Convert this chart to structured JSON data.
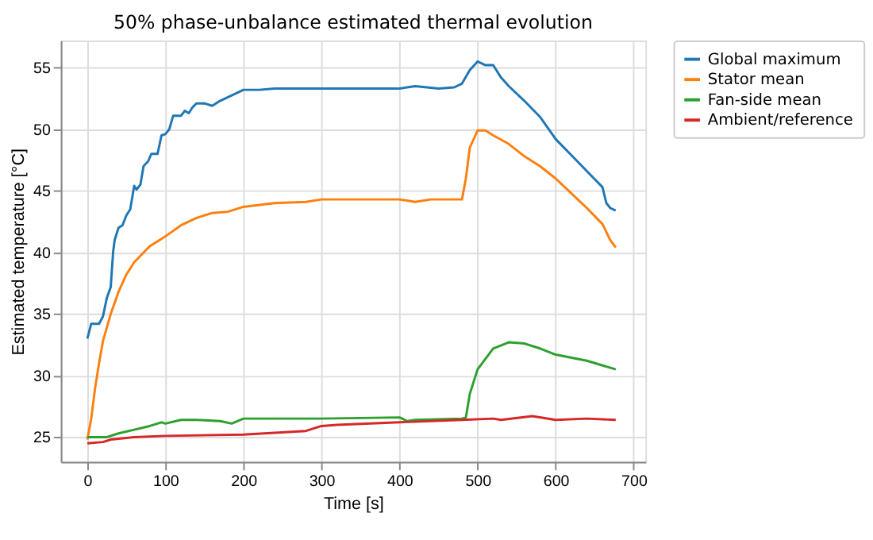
{
  "chart_data": {
    "type": "line",
    "title": "50% phase-unbalance estimated thermal evolution",
    "xlabel": "Time [s]",
    "ylabel": "Estimated temperature [°C]",
    "xlim": [
      -34,
      715
    ],
    "ylim": [
      23,
      57.2
    ],
    "xticks": [
      0,
      100,
      200,
      300,
      400,
      500,
      600,
      700
    ],
    "yticks": [
      25,
      30,
      35,
      40,
      45,
      50,
      55
    ],
    "grid": true,
    "legend": "top right",
    "line_style": "solid",
    "marker": "none",
    "series": [
      {
        "name": "Global maximum",
        "color": "#1f77b4",
        "x": [
          0,
          5,
          15,
          20,
          25,
          30,
          33,
          35,
          40,
          45,
          50,
          55,
          60,
          63,
          68,
          72,
          78,
          82,
          90,
          95,
          100,
          105,
          110,
          120,
          125,
          130,
          135,
          140,
          150,
          160,
          170,
          200,
          220,
          240,
          260,
          280,
          400,
          420,
          450,
          470,
          480,
          490,
          500,
          510,
          520,
          530,
          540,
          560,
          580,
          600,
          620,
          640,
          660,
          665,
          670,
          677
        ],
        "values": [
          33,
          34.2,
          34.2,
          34.8,
          36.3,
          37.2,
          40,
          41,
          42,
          42.2,
          43,
          43.5,
          45.4,
          45.1,
          45.5,
          47,
          47.4,
          48,
          48,
          49.5,
          49.6,
          50,
          51.1,
          51.1,
          51.5,
          51.3,
          51.8,
          52.1,
          52.1,
          51.9,
          52.3,
          53.2,
          53.2,
          53.3,
          53.3,
          53.3,
          53.3,
          53.5,
          53.3,
          53.4,
          53.7,
          54.8,
          55.5,
          55.2,
          55.2,
          54.2,
          53.5,
          52.3,
          51,
          49.2,
          47.9,
          46.6,
          45.3,
          44,
          43.6,
          43.4
        ]
      },
      {
        "name": "Stator mean",
        "color": "#ff7f0e",
        "x": [
          0,
          5,
          10,
          15,
          20,
          30,
          40,
          50,
          60,
          80,
          100,
          120,
          140,
          160,
          180,
          200,
          240,
          280,
          300,
          400,
          420,
          440,
          480,
          485,
          490,
          500,
          510,
          520,
          540,
          560,
          580,
          600,
          620,
          640,
          660,
          670,
          677
        ],
        "values": [
          24.8,
          26.5,
          29,
          31,
          32.8,
          35,
          36.8,
          38.2,
          39.2,
          40.5,
          41.3,
          42.2,
          42.8,
          43.2,
          43.3,
          43.7,
          44,
          44.1,
          44.3,
          44.3,
          44.1,
          44.3,
          44.3,
          46,
          48.5,
          49.9,
          49.9,
          49.5,
          48.8,
          47.8,
          47,
          46,
          44.8,
          43.6,
          42.3,
          41,
          40.4
        ]
      },
      {
        "name": "Fan-side mean",
        "color": "#2ca02c",
        "x": [
          0,
          25,
          40,
          60,
          80,
          95,
          100,
          120,
          140,
          170,
          185,
          200,
          300,
          400,
          410,
          420,
          480,
          485,
          490,
          500,
          520,
          540,
          560,
          580,
          600,
          640,
          677
        ],
        "values": [
          25,
          25,
          25.3,
          25.6,
          25.9,
          26.2,
          26.1,
          26.4,
          26.4,
          26.3,
          26.1,
          26.5,
          26.5,
          26.6,
          26.3,
          26.4,
          26.5,
          26.6,
          28.5,
          30.5,
          32.2,
          32.7,
          32.6,
          32.2,
          31.7,
          31.2,
          30.5
        ]
      },
      {
        "name": "Ambient/reference",
        "color": "#d62728",
        "x": [
          0,
          20,
          30,
          60,
          100,
          200,
          280,
          300,
          320,
          400,
          480,
          520,
          530,
          570,
          600,
          640,
          677
        ],
        "values": [
          24.5,
          24.6,
          24.8,
          25.0,
          25.1,
          25.2,
          25.5,
          25.9,
          26.0,
          26.2,
          26.4,
          26.5,
          26.4,
          26.7,
          26.4,
          26.5,
          26.4
        ]
      }
    ]
  }
}
